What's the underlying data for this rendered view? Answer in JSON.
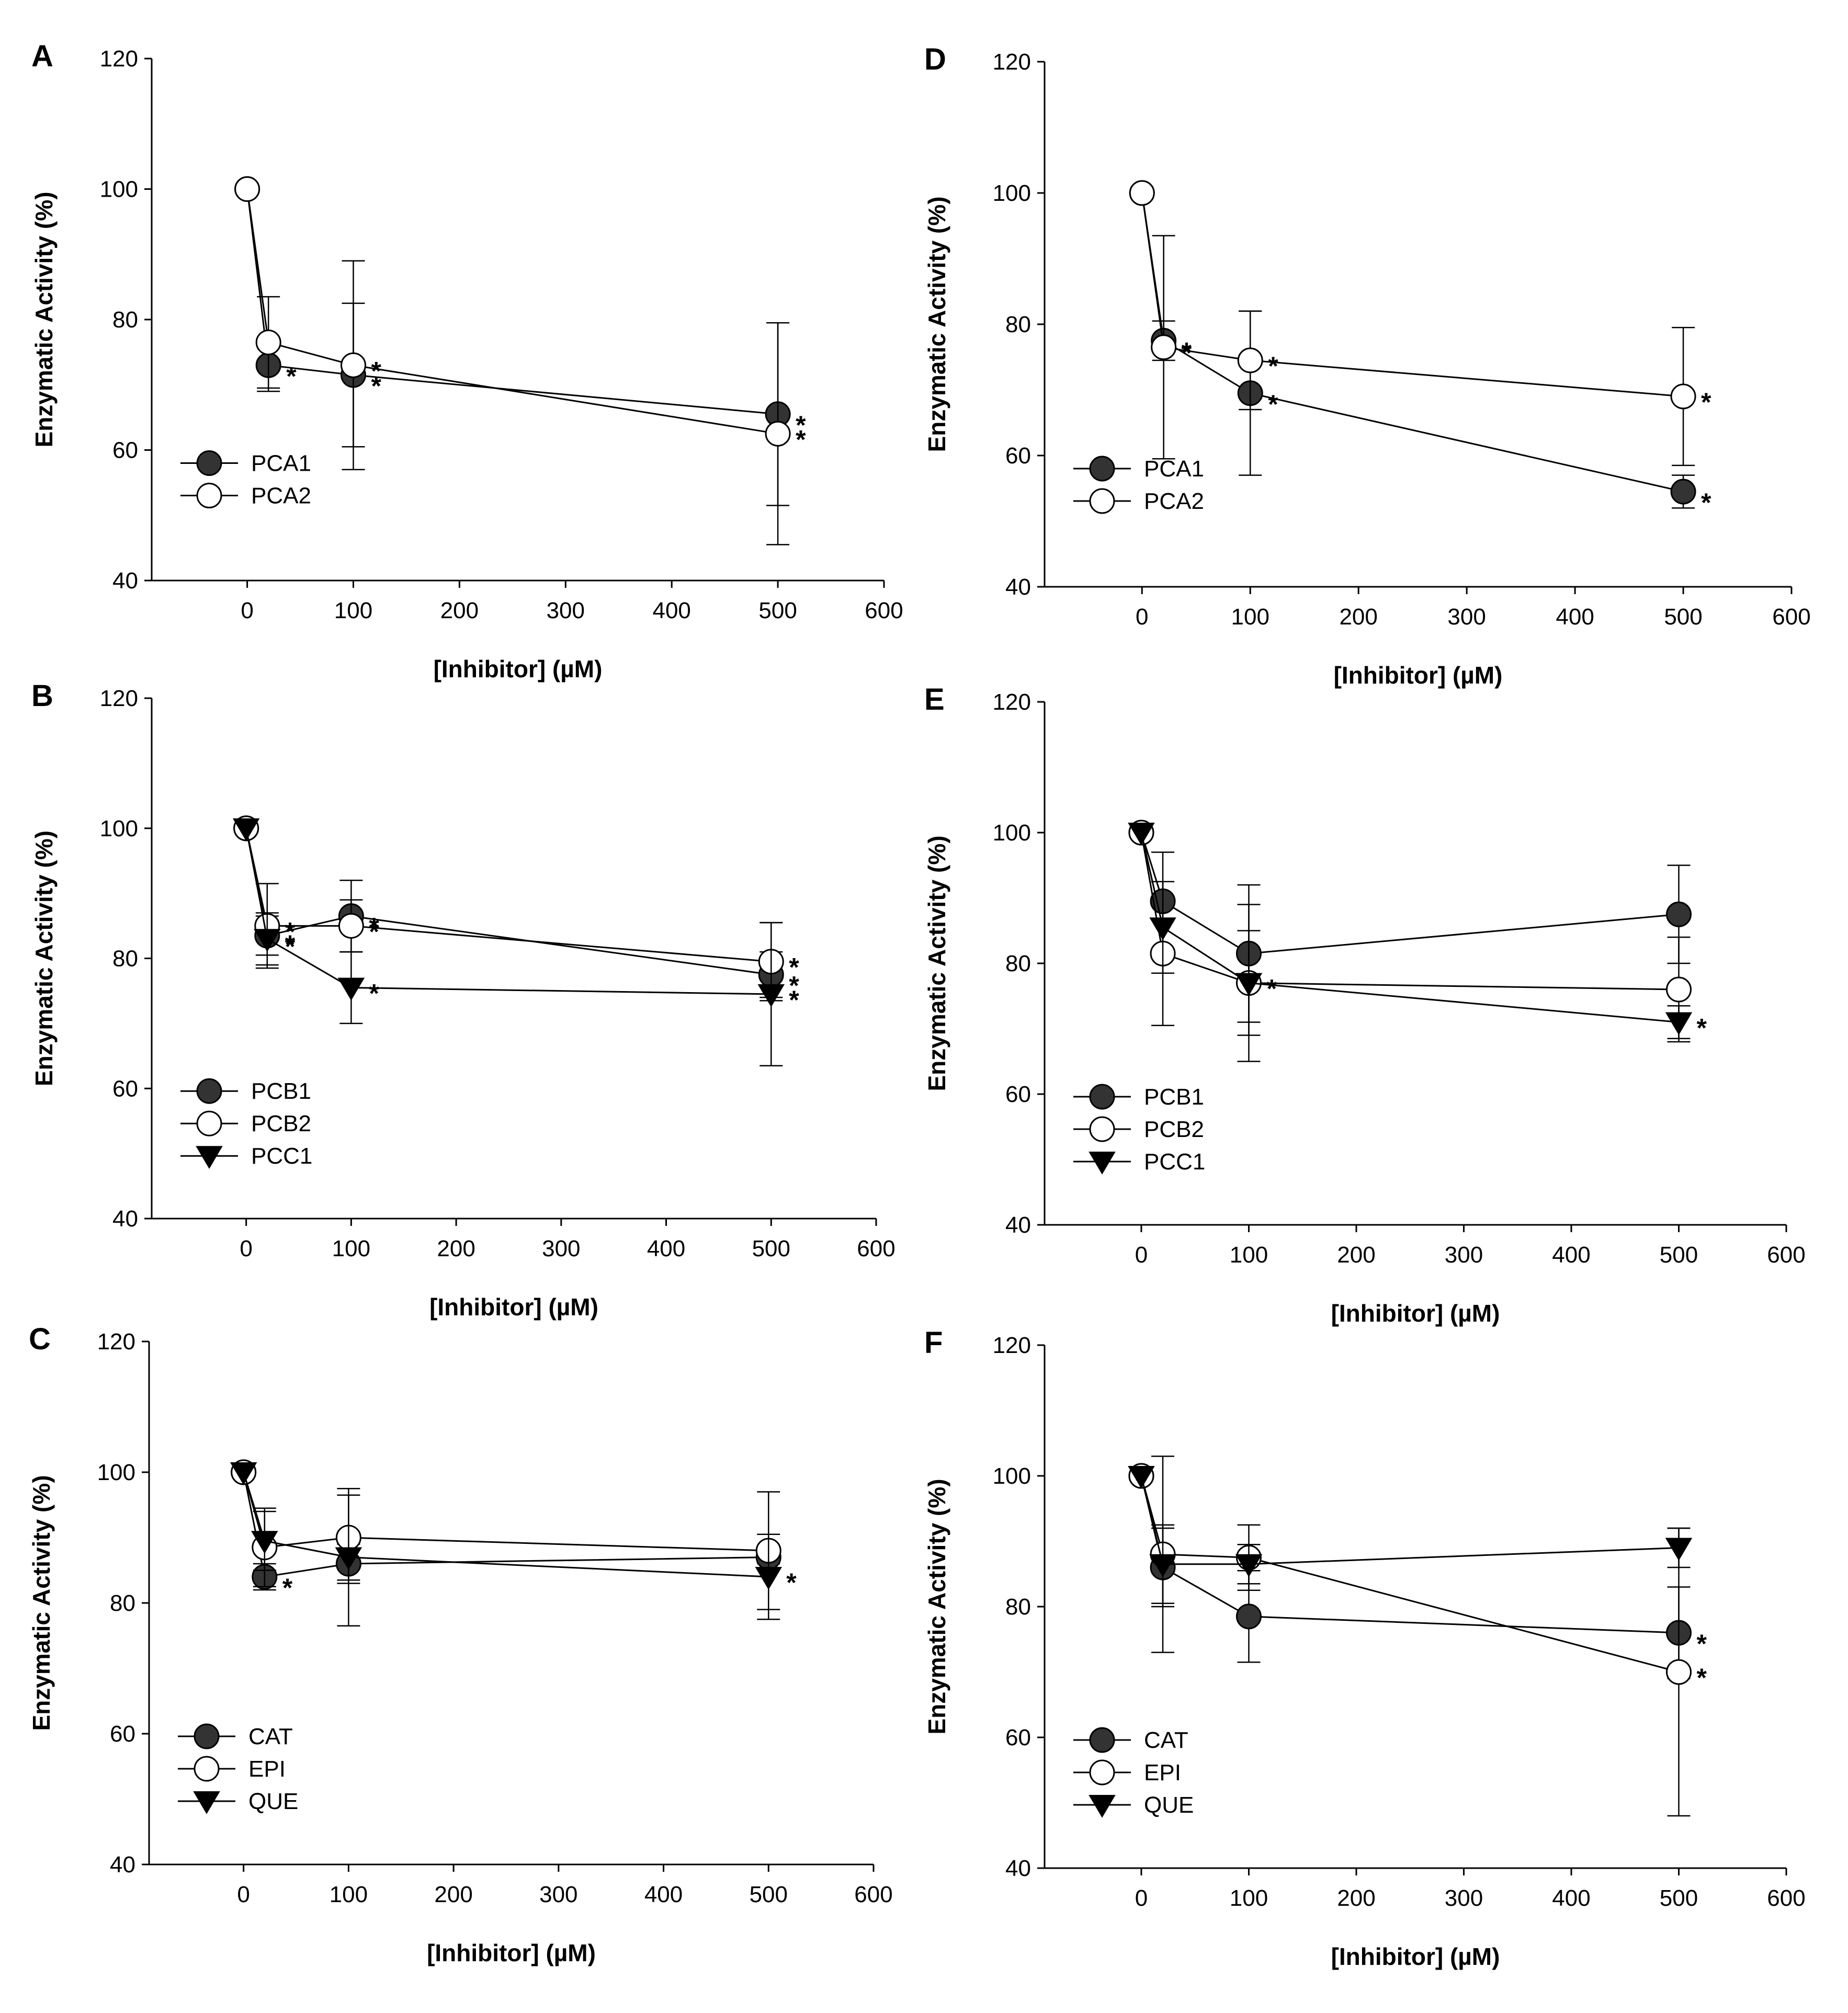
{
  "figure": {
    "colors": {
      "axis": "#000000",
      "filled_marker": "#333333",
      "open_marker": "#ffffff"
    }
  },
  "chart_data": [
    {
      "panel": "A",
      "type": "line",
      "xlabel": "[Inhibitor] (µM)",
      "ylabel": "Enzymatic Activity (%)",
      "xlim": [
        -90,
        600
      ],
      "ylim": [
        40,
        120
      ],
      "xticks": [
        "0",
        "100",
        "200",
        "300",
        "400",
        "500",
        "600"
      ],
      "yticks": [
        "40",
        "60",
        "80",
        "100",
        "120"
      ],
      "legend_position": "bottom-left",
      "series": [
        {
          "name": "PCA1",
          "marker": "filled-circle",
          "points": [
            {
              "x": 0,
              "y": 100
            },
            {
              "x": 20,
              "y": 73,
              "err": 4,
              "sig": "*"
            },
            {
              "x": 100,
              "y": 71.5,
              "err": 11,
              "sig": "*"
            },
            {
              "x": 500,
              "y": 65.5,
              "err": 14,
              "sig": "*"
            }
          ]
        },
        {
          "name": "PCA2",
          "marker": "open-circle",
          "points": [
            {
              "x": 0,
              "y": 100
            },
            {
              "x": 20,
              "y": 76.5,
              "err": 7
            },
            {
              "x": 100,
              "y": 73,
              "err": 16,
              "sig": "*"
            },
            {
              "x": 500,
              "y": 62.5,
              "err": 17,
              "sig": "*"
            }
          ]
        }
      ]
    },
    {
      "panel": "B",
      "type": "line",
      "xlabel": "[Inhibitor] (µM)",
      "ylabel": "Enzymatic Activity (%)",
      "xlim": [
        -90,
        600
      ],
      "ylim": [
        40,
        120
      ],
      "xticks": [
        "0",
        "100",
        "200",
        "300",
        "400",
        "500",
        "600"
      ],
      "yticks": [
        "40",
        "60",
        "80",
        "100",
        "120"
      ],
      "legend_position": "bottom-left",
      "series": [
        {
          "name": "PCB1",
          "marker": "filled-circle",
          "points": [
            {
              "x": 0,
              "y": 100
            },
            {
              "x": 20,
              "y": 83.5,
              "err": 3,
              "sig": "*"
            },
            {
              "x": 100,
              "y": 86.5,
              "err": 5.5,
              "sig": "*"
            },
            {
              "x": 500,
              "y": 77.5,
              "err": 3.5,
              "sig": "*"
            }
          ]
        },
        {
          "name": "PCB2",
          "marker": "open-circle",
          "points": [
            {
              "x": 0,
              "y": 100
            },
            {
              "x": 20,
              "y": 85,
              "err": 6.5,
              "sig": "*"
            },
            {
              "x": 100,
              "y": 85,
              "err": 4,
              "sig": "*"
            },
            {
              "x": 500,
              "y": 79.5,
              "err": 6,
              "sig": "*"
            }
          ]
        },
        {
          "name": "PCC1",
          "marker": "filled-triangle-down",
          "points": [
            {
              "x": 0,
              "y": 100
            },
            {
              "x": 20,
              "y": 83,
              "err": 4,
              "sig": "*"
            },
            {
              "x": 100,
              "y": 75.5,
              "err": 5.5,
              "sig": "*"
            },
            {
              "x": 500,
              "y": 74.5,
              "err": 11,
              "sig": "*"
            }
          ]
        }
      ]
    },
    {
      "panel": "C",
      "type": "line",
      "xlabel": "[Inhibitor] (µM)",
      "ylabel": "Enzymatic Activity (%)",
      "xlim": [
        -90,
        600
      ],
      "ylim": [
        40,
        120
      ],
      "xticks": [
        "0",
        "100",
        "200",
        "300",
        "400",
        "500",
        "600"
      ],
      "yticks": [
        "40",
        "60",
        "80",
        "100",
        "120"
      ],
      "legend_position": "bottom-left",
      "series": [
        {
          "name": "CAT",
          "marker": "filled-circle",
          "points": [
            {
              "x": 0,
              "y": 100
            },
            {
              "x": 20,
              "y": 84,
              "err": 2,
              "sig": "*"
            },
            {
              "x": 100,
              "y": 86,
              "err": 3
            },
            {
              "x": 500,
              "y": 87,
              "err": 1
            }
          ]
        },
        {
          "name": "EPI",
          "marker": "open-circle",
          "points": [
            {
              "x": 0,
              "y": 100
            },
            {
              "x": 20,
              "y": 88.5,
              "err": 6
            },
            {
              "x": 100,
              "y": 90,
              "err": 6.5
            },
            {
              "x": 500,
              "y": 88,
              "err": 9
            }
          ]
        },
        {
          "name": "QUE",
          "marker": "filled-triangle-down",
          "points": [
            {
              "x": 0,
              "y": 100
            },
            {
              "x": 20,
              "y": 89.5,
              "err": 4.5
            },
            {
              "x": 100,
              "y": 87,
              "err": 10.5
            },
            {
              "x": 500,
              "y": 84,
              "err": 6.5,
              "sig": "*"
            }
          ]
        }
      ]
    },
    {
      "panel": "D",
      "type": "line",
      "xlabel": "[Inhibitor] (µM)",
      "ylabel": "Enzymatic Activity (%)",
      "xlim": [
        -90,
        600
      ],
      "ylim": [
        40,
        120
      ],
      "xticks": [
        "0",
        "100",
        "200",
        "300",
        "400",
        "500",
        "600"
      ],
      "yticks": [
        "40",
        "60",
        "80",
        "100",
        "120"
      ],
      "legend_position": "bottom-left",
      "series": [
        {
          "name": "PCA1",
          "marker": "filled-circle",
          "points": [
            {
              "x": 0,
              "y": 100
            },
            {
              "x": 20,
              "y": 77.5,
              "err": 3,
              "sig": "*"
            },
            {
              "x": 100,
              "y": 69.5,
              "err": 12.5,
              "sig": "*"
            },
            {
              "x": 500,
              "y": 54.5,
              "err": 2.5,
              "sig": "*"
            }
          ]
        },
        {
          "name": "PCA2",
          "marker": "open-circle",
          "points": [
            {
              "x": 0,
              "y": 100
            },
            {
              "x": 20,
              "y": 76.5,
              "err": 17,
              "sig": "*"
            },
            {
              "x": 100,
              "y": 74.5,
              "err": 7.5,
              "sig": "*"
            },
            {
              "x": 500,
              "y": 69,
              "err": 10.5,
              "sig": "*"
            }
          ]
        }
      ]
    },
    {
      "panel": "E",
      "type": "line",
      "xlabel": "[Inhibitor] (µM)",
      "ylabel": "Enzymatic Activity (%)",
      "xlim": [
        -90,
        600
      ],
      "ylim": [
        40,
        120
      ],
      "xticks": [
        "0",
        "100",
        "200",
        "300",
        "400",
        "500",
        "600"
      ],
      "yticks": [
        "40",
        "60",
        "80",
        "100",
        "120"
      ],
      "legend_position": "bottom-left",
      "series": [
        {
          "name": "PCB1",
          "marker": "filled-circle",
          "points": [
            {
              "x": 0,
              "y": 100
            },
            {
              "x": 20,
              "y": 89.5,
              "err": 7.5
            },
            {
              "x": 100,
              "y": 81.5,
              "err": 10.5
            },
            {
              "x": 500,
              "y": 87.5,
              "err": 7.5
            }
          ]
        },
        {
          "name": "PCB2",
          "marker": "open-circle",
          "points": [
            {
              "x": 0,
              "y": 100
            },
            {
              "x": 20,
              "y": 81.5,
              "err": 11
            },
            {
              "x": 100,
              "y": 77,
              "err": 8
            },
            {
              "x": 500,
              "y": 76,
              "err": 8
            }
          ]
        },
        {
          "name": "PCC1",
          "marker": "filled-triangle-down",
          "points": [
            {
              "x": 0,
              "y": 100
            },
            {
              "x": 20,
              "y": 85.5,
              "err": 7
            },
            {
              "x": 100,
              "y": 77,
              "err": 12,
              "sig": "*"
            },
            {
              "x": 500,
              "y": 71,
              "err": 2.5,
              "sig": "*"
            }
          ]
        }
      ]
    },
    {
      "panel": "F",
      "type": "line",
      "xlabel": "[Inhibitor] (µM)",
      "ylabel": "Enzymatic Activity (%)",
      "xlim": [
        -90,
        600
      ],
      "ylim": [
        40,
        120
      ],
      "xticks": [
        "0",
        "100",
        "200",
        "300",
        "400",
        "500",
        "600"
      ],
      "yticks": [
        "40",
        "60",
        "80",
        "100",
        "120"
      ],
      "legend_position": "bottom-left",
      "series": [
        {
          "name": "CAT",
          "marker": "filled-circle",
          "points": [
            {
              "x": 0,
              "y": 100
            },
            {
              "x": 20,
              "y": 86,
              "err": 6
            },
            {
              "x": 100,
              "y": 78.5,
              "err": 7
            },
            {
              "x": 500,
              "y": 76,
              "err": 7,
              "sig": "*"
            }
          ]
        },
        {
          "name": "EPI",
          "marker": "open-circle",
          "points": [
            {
              "x": 0,
              "y": 100
            },
            {
              "x": 20,
              "y": 88,
              "err": 15
            },
            {
              "x": 100,
              "y": 87.5,
              "err": 5
            },
            {
              "x": 500,
              "y": 70,
              "err": 22,
              "sig": "*"
            }
          ]
        },
        {
          "name": "QUE",
          "marker": "filled-triangle-down",
          "points": [
            {
              "x": 0,
              "y": 100
            },
            {
              "x": 20,
              "y": 86.5,
              "err": 6
            },
            {
              "x": 100,
              "y": 86.5,
              "err": 3
            },
            {
              "x": 500,
              "y": 89,
              "err": 3
            }
          ]
        }
      ]
    }
  ]
}
